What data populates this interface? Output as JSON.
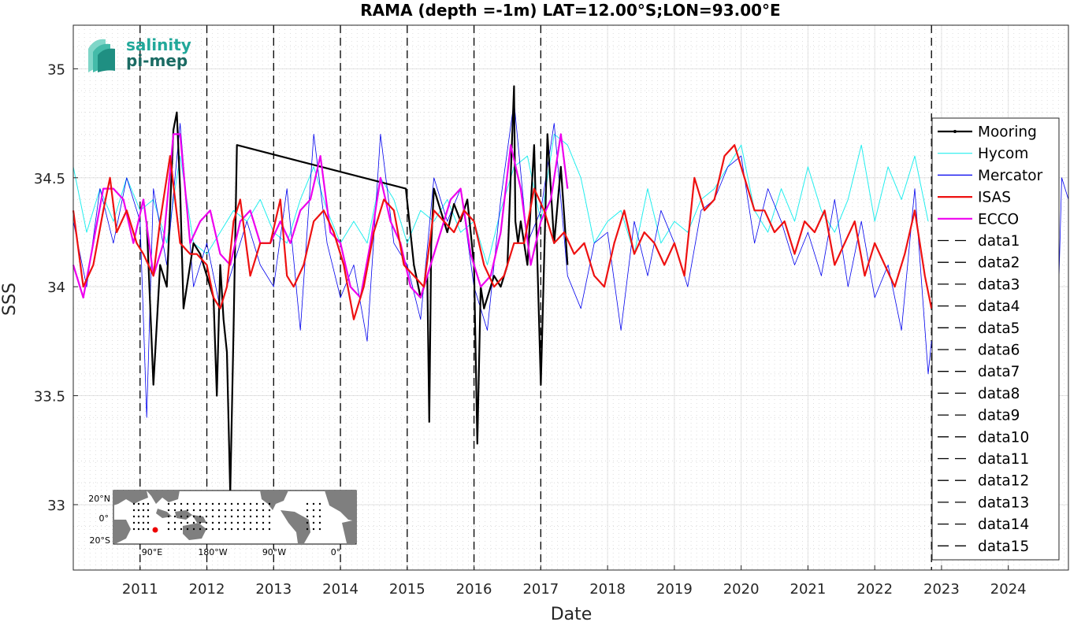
{
  "chart_data": {
    "type": "line",
    "title": "RAMA (depth =-1m) LAT=12.00°S;LON=93.00°E",
    "xlabel": "Date",
    "ylabel": "SSS",
    "xlim": [
      2010.0,
      2024.9
    ],
    "ylim": [
      32.7,
      35.2
    ],
    "x_ticks": [
      2011,
      2012,
      2013,
      2014,
      2015,
      2016,
      2017,
      2018,
      2019,
      2020,
      2021,
      2022,
      2023,
      2024
    ],
    "x_tick_labels": [
      "2011",
      "2012",
      "2013",
      "2014",
      "2015",
      "2016",
      "2017",
      "2018",
      "2019",
      "2020",
      "2021",
      "2022",
      "2023",
      "2024"
    ],
    "y_ticks": [
      33,
      33.5,
      34,
      34.5,
      35
    ],
    "y_tick_labels": [
      "33",
      "33.5",
      "34",
      "34.5",
      "35"
    ],
    "grid": true,
    "legend_position": "right",
    "vertical_lines_x": [
      2011.0,
      2012.0,
      2013.0,
      2014.0,
      2015.0,
      2016.0,
      2017.0,
      2022.85
    ],
    "series": [
      {
        "name": "Mooring",
        "color": "#000000",
        "width": 2.2,
        "x": [
          2011.1,
          2011.2,
          2011.3,
          2011.4,
          2011.5,
          2011.55,
          2011.6,
          2011.65,
          2011.7,
          2011.8,
          2011.9,
          2012.0,
          2012.1,
          2012.15,
          2012.2,
          2012.25,
          2012.3,
          2012.35,
          2012.4,
          2012.45,
          2014.98,
          2015.1,
          2015.2,
          2015.3,
          2015.33,
          2015.36,
          2015.4,
          2015.5,
          2015.6,
          2015.7,
          2015.8,
          2015.9,
          2016.0,
          2016.05,
          2016.1,
          2016.15,
          2016.2,
          2016.3,
          2016.4,
          2016.5,
          2016.6,
          2016.62,
          2016.66,
          2016.7,
          2016.8,
          2016.9,
          2017.0,
          2017.1,
          2017.2,
          2017.3,
          2017.4
        ],
        "y": [
          34.3,
          33.55,
          34.1,
          34.0,
          34.72,
          34.8,
          34.45,
          33.9,
          34.0,
          34.2,
          34.15,
          34.05,
          33.95,
          33.5,
          34.1,
          33.85,
          33.7,
          33.05,
          33.8,
          34.65,
          34.45,
          34.1,
          33.95,
          34.05,
          33.38,
          34.2,
          34.45,
          34.35,
          34.25,
          34.38,
          34.3,
          34.4,
          34.1,
          33.28,
          34.0,
          33.9,
          33.95,
          34.05,
          34.0,
          34.1,
          34.92,
          34.3,
          34.2,
          34.3,
          34.1,
          34.65,
          33.55,
          34.7,
          34.2,
          34.55,
          34.1
        ]
      },
      {
        "name": "Hycom",
        "color": "#22eeee",
        "width": 1.0,
        "x": [
          2010.0,
          2010.2,
          2010.4,
          2010.6,
          2010.8,
          2011.0,
          2011.2,
          2011.4,
          2011.6,
          2011.8,
          2012.0,
          2012.2,
          2012.4,
          2012.6,
          2012.8,
          2013.0,
          2013.2,
          2013.4,
          2013.6,
          2013.8,
          2014.0,
          2014.2,
          2014.4,
          2014.6,
          2014.8,
          2015.0,
          2015.2,
          2015.4,
          2015.6,
          2015.8,
          2016.0,
          2016.2,
          2016.4,
          2016.6,
          2016.8,
          2017.0,
          2017.2,
          2017.4,
          2017.6,
          2017.8,
          2018.0,
          2018.2,
          2018.4,
          2018.6,
          2018.8,
          2019.0,
          2019.2,
          2019.4,
          2019.6,
          2019.8,
          2020.0,
          2020.2,
          2020.4,
          2020.6,
          2020.8,
          2021.0,
          2021.2,
          2021.4,
          2021.6,
          2021.8,
          2022.0,
          2022.2,
          2022.4,
          2022.6,
          2022.8
        ],
        "y": [
          34.55,
          34.25,
          34.45,
          34.3,
          34.5,
          34.35,
          34.4,
          34.2,
          34.6,
          34.2,
          34.15,
          34.25,
          34.35,
          34.3,
          34.4,
          34.25,
          34.2,
          34.4,
          34.55,
          34.35,
          34.2,
          34.3,
          34.2,
          34.5,
          34.4,
          34.2,
          34.35,
          34.3,
          34.4,
          34.25,
          34.3,
          34.1,
          34.35,
          34.55,
          34.6,
          34.3,
          34.7,
          34.65,
          34.5,
          34.2,
          34.3,
          34.35,
          34.15,
          34.45,
          34.2,
          34.3,
          34.25,
          34.4,
          34.45,
          34.55,
          34.65,
          34.35,
          34.25,
          34.45,
          34.3,
          34.55,
          34.35,
          34.25,
          34.4,
          34.65,
          34.3,
          34.55,
          34.4,
          34.6,
          34.3
        ]
      },
      {
        "name": "Mercator",
        "color": "#0000ee",
        "width": 0.8,
        "x": [
          2010.0,
          2010.2,
          2010.4,
          2010.6,
          2010.8,
          2011.0,
          2011.1,
          2011.2,
          2011.4,
          2011.6,
          2011.8,
          2012.0,
          2012.2,
          2012.4,
          2012.6,
          2012.8,
          2013.0,
          2013.2,
          2013.4,
          2013.6,
          2013.8,
          2014.0,
          2014.2,
          2014.4,
          2014.6,
          2014.8,
          2015.0,
          2015.2,
          2015.4,
          2015.6,
          2015.8,
          2016.0,
          2016.2,
          2016.4,
          2016.6,
          2016.8,
          2017.0,
          2017.2,
          2017.4,
          2017.6,
          2017.8,
          2018.0,
          2018.2,
          2018.4,
          2018.6,
          2018.8,
          2019.0,
          2019.2,
          2019.4,
          2019.6,
          2019.8,
          2020.0,
          2020.2,
          2020.4,
          2020.6,
          2020.8,
          2021.0,
          2021.2,
          2021.4,
          2021.6,
          2021.8,
          2022.0,
          2022.2,
          2022.4,
          2022.6,
          2022.8,
          2022.85,
          2024.75,
          2024.8,
          2024.9
        ],
        "y": [
          34.3,
          34.0,
          34.45,
          34.2,
          34.5,
          34.3,
          33.4,
          34.45,
          34.1,
          34.75,
          34.0,
          34.2,
          33.9,
          34.1,
          34.3,
          34.1,
          34.0,
          34.45,
          33.8,
          34.7,
          34.2,
          33.95,
          34.1,
          33.75,
          34.7,
          34.2,
          34.1,
          33.85,
          34.5,
          34.3,
          34.45,
          34.0,
          33.8,
          34.4,
          34.85,
          34.2,
          34.35,
          34.75,
          34.05,
          33.9,
          34.2,
          34.25,
          33.8,
          34.3,
          34.05,
          34.35,
          34.2,
          34.0,
          34.35,
          34.4,
          34.55,
          34.6,
          34.2,
          34.45,
          34.3,
          34.1,
          34.25,
          34.05,
          34.4,
          34.0,
          34.3,
          33.95,
          34.1,
          33.8,
          34.45,
          33.6,
          33.75,
          33.95,
          34.5,
          34.4
        ]
      },
      {
        "name": "ISAS",
        "color": "#ee1111",
        "width": 2.2,
        "x": [
          2010.0,
          2010.15,
          2010.3,
          2010.45,
          2010.55,
          2010.65,
          2010.8,
          2010.95,
          2011.05,
          2011.2,
          2011.3,
          2011.45,
          2011.6,
          2011.75,
          2011.85,
          2012.0,
          2012.1,
          2012.2,
          2012.3,
          2012.4,
          2012.5,
          2012.65,
          2012.8,
          2012.95,
          2013.1,
          2013.2,
          2013.3,
          2013.45,
          2013.6,
          2013.75,
          2013.9,
          2014.05,
          2014.2,
          2014.35,
          2014.5,
          2014.65,
          2014.8,
          2014.95,
          2015.1,
          2015.25,
          2015.4,
          2015.55,
          2015.7,
          2015.85,
          2016.0,
          2016.15,
          2016.3,
          2016.45,
          2016.6,
          2016.75,
          2016.9,
          2017.05,
          2017.2,
          2017.35,
          2017.5,
          2017.65,
          2017.8,
          2017.95,
          2018.1,
          2018.25,
          2018.4,
          2018.55,
          2018.7,
          2018.85,
          2019.0,
          2019.15,
          2019.3,
          2019.45,
          2019.6,
          2019.75,
          2019.9,
          2020.05,
          2020.2,
          2020.35,
          2020.5,
          2020.65,
          2020.8,
          2020.95,
          2021.1,
          2021.25,
          2021.4,
          2021.55,
          2021.7,
          2021.85,
          2022.0,
          2022.15,
          2022.3,
          2022.45,
          2022.6,
          2022.75,
          2022.85
        ],
        "y": [
          34.35,
          34.0,
          34.1,
          34.35,
          34.5,
          34.25,
          34.35,
          34.2,
          34.15,
          34.05,
          34.3,
          34.6,
          34.2,
          34.15,
          34.15,
          34.1,
          33.95,
          33.9,
          34.0,
          34.3,
          34.4,
          34.05,
          34.2,
          34.2,
          34.4,
          34.05,
          34.0,
          34.1,
          34.3,
          34.35,
          34.25,
          34.1,
          33.85,
          34.0,
          34.25,
          34.4,
          34.35,
          34.1,
          34.05,
          34.0,
          34.35,
          34.3,
          34.25,
          34.35,
          34.3,
          34.1,
          34.0,
          34.05,
          34.2,
          34.2,
          34.45,
          34.35,
          34.2,
          34.25,
          34.15,
          34.2,
          34.05,
          34.0,
          34.2,
          34.35,
          34.15,
          34.25,
          34.2,
          34.1,
          34.2,
          34.05,
          34.5,
          34.35,
          34.4,
          34.6,
          34.65,
          34.5,
          34.35,
          34.35,
          34.25,
          34.3,
          34.15,
          34.3,
          34.25,
          34.35,
          34.1,
          34.2,
          34.3,
          34.05,
          34.2,
          34.1,
          34.0,
          34.15,
          34.35,
          34.05,
          33.9
        ]
      },
      {
        "name": "ECCO",
        "color": "#ee00ee",
        "width": 2.2,
        "x": [
          2010.0,
          2010.15,
          2010.3,
          2010.45,
          2010.6,
          2010.75,
          2010.9,
          2011.05,
          2011.2,
          2011.35,
          2011.5,
          2011.6,
          2011.75,
          2011.9,
          2012.05,
          2012.2,
          2012.35,
          2012.5,
          2012.65,
          2012.8,
          2012.95,
          2013.1,
          2013.25,
          2013.4,
          2013.55,
          2013.7,
          2013.85,
          2014.0,
          2014.15,
          2014.3,
          2014.45,
          2014.6,
          2014.75,
          2014.9,
          2015.05,
          2015.2,
          2015.35,
          2015.5,
          2015.65,
          2015.8,
          2015.95,
          2016.1,
          2016.25,
          2016.4,
          2016.55,
          2016.7,
          2016.85,
          2017.0,
          2017.15,
          2017.3,
          2017.4
        ],
        "y": [
          34.1,
          33.95,
          34.2,
          34.45,
          34.45,
          34.4,
          34.2,
          34.4,
          34.05,
          34.2,
          34.7,
          34.7,
          34.2,
          34.3,
          34.35,
          34.15,
          34.1,
          34.3,
          34.35,
          34.2,
          34.2,
          34.3,
          34.2,
          34.35,
          34.4,
          34.6,
          34.25,
          34.2,
          34.0,
          33.95,
          34.2,
          34.5,
          34.3,
          34.2,
          34.0,
          33.95,
          34.1,
          34.25,
          34.4,
          34.45,
          34.15,
          34.0,
          34.05,
          34.25,
          34.65,
          34.45,
          34.1,
          34.3,
          34.4,
          34.7,
          34.45
        ]
      }
    ],
    "legend": [
      "Mooring",
      "Hycom",
      "Mercator",
      "ISAS",
      "ECCO",
      "data1",
      "data2",
      "data3",
      "data4",
      "data5",
      "data6",
      "data7",
      "data8",
      "data9",
      "data10",
      "data11",
      "data12",
      "data13",
      "data14",
      "data15"
    ]
  },
  "logo": {
    "line1": "salinity",
    "line2": "pi-mep"
  },
  "inset_map": {
    "x_labels": [
      "90°E",
      "180°W",
      "90°W",
      "0°"
    ],
    "y_labels": [
      "20°N",
      "0°",
      "20°S"
    ],
    "marker_color": "#ee0000"
  }
}
